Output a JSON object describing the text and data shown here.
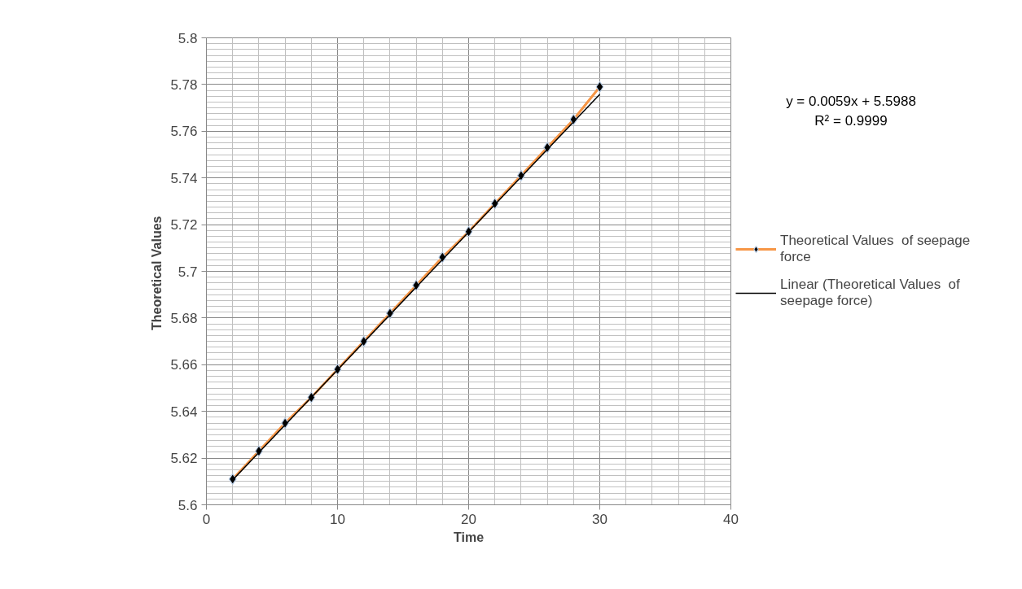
{
  "chart_data": {
    "type": "line",
    "xlabel": "Time",
    "ylabel": "Theoretical  Values",
    "xlim": [
      0,
      40
    ],
    "xticks": [
      0,
      10,
      20,
      30,
      40
    ],
    "ylim": [
      5.6,
      5.8
    ],
    "yticks": [
      5.6,
      5.62,
      5.64,
      5.66,
      5.68,
      5.7,
      5.72,
      5.74,
      5.76,
      5.78,
      5.8
    ],
    "grid": true,
    "legend": "right",
    "line_style": "solid",
    "annotations": [
      "y = 0.0059x + 5.5988",
      "R² = 0.9999"
    ],
    "series": [
      {
        "name": "Theoretical Values  of seepage force",
        "color": "#f79646",
        "marker": "diamond",
        "x": [
          2,
          4,
          6,
          8,
          10,
          12,
          14,
          16,
          18,
          20,
          22,
          24,
          26,
          28,
          30
        ],
        "values": [
          5.611,
          5.623,
          5.635,
          5.646,
          5.658,
          5.67,
          5.682,
          5.694,
          5.706,
          5.717,
          5.729,
          5.741,
          5.753,
          5.765,
          5.779
        ]
      },
      {
        "name": "Linear (Theoretical Values  of seepage force)",
        "color": "#000000",
        "x": [
          2,
          30
        ],
        "values": [
          5.6106,
          5.7758
        ]
      }
    ]
  }
}
